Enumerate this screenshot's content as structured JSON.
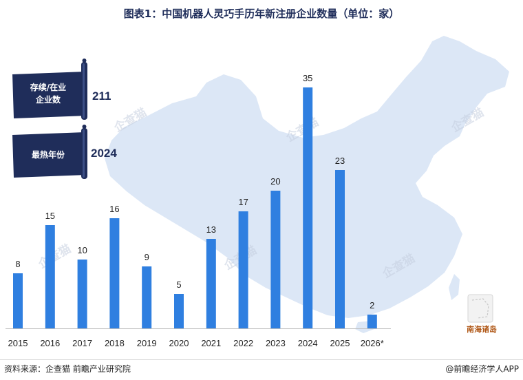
{
  "chart_data": {
    "type": "bar",
    "title": "图表1：中国机器人灵巧手历年新注册企业数量（单位：家）",
    "categories": [
      "2015",
      "2016",
      "2017",
      "2018",
      "2019",
      "2020",
      "2021",
      "2022",
      "2023",
      "2024",
      "2025",
      "2026*"
    ],
    "values": [
      8,
      15,
      10,
      16,
      9,
      5,
      13,
      17,
      20,
      35,
      23,
      2
    ],
    "ylim": [
      0,
      38
    ],
    "grid": false,
    "bar_color": "#2f7fe0"
  },
  "stats": [
    {
      "label_lines": [
        "存续/在业",
        "企业数"
      ],
      "value": "211"
    },
    {
      "label_lines": [
        "最热年份"
      ],
      "value": "2024"
    }
  ],
  "map_label": "南海诸岛",
  "watermark": "企查猫",
  "footer": {
    "source": "资料来源：企查猫 前瞻产业研究院",
    "brand": "@前瞻经济学人APP"
  },
  "colors": {
    "map_fill": "#dce7f6",
    "banner_fill": "#1f2d5a",
    "title_color": "#1f2d5a"
  }
}
